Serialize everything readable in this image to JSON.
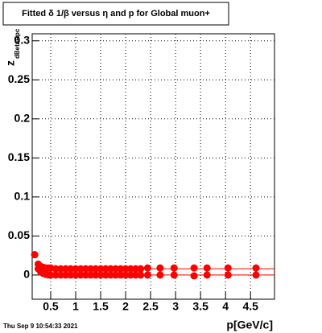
{
  "chart_data": {
    "type": "scatter",
    "title": "Fitted δ 1/β versus η and p for Global muon+",
    "xlabel": "p[GeV/c]",
    "ylabel": "z",
    "ylabel_sub": "dBetaRpc",
    "footer": "Thu Sep  9 10:54:33 2021",
    "x": [
      0.18,
      0.25,
      0.3,
      0.35,
      0.4,
      0.45,
      0.5,
      0.6,
      0.7,
      0.8,
      0.9,
      1.0,
      1.1,
      1.2,
      1.3,
      1.4,
      1.5,
      1.6,
      1.7,
      1.8,
      1.9,
      2.0,
      2.1,
      2.2,
      2.3,
      2.44,
      2.69,
      2.97,
      3.37,
      3.63,
      4.05,
      4.61
    ],
    "series": [
      {
        "color": "#ff0000",
        "values": [
          0.026,
          0.014,
          0.011,
          0.01,
          0.009,
          0.009,
          0.009,
          0.008,
          0.008,
          0.008,
          0.008,
          0.008,
          0.008,
          0.008,
          0.008,
          0.008,
          0.008,
          0.008,
          0.008,
          0.008,
          0.008,
          0.008,
          0.008,
          0.008,
          0.008,
          0.009,
          0.009,
          0.009,
          0.009,
          0.009,
          0.009,
          0.009
        ]
      },
      {
        "color": "#ff0000",
        "values": [
          0.026,
          0.008,
          0.004,
          0.002,
          0.001,
          0.0,
          0.0,
          0.0,
          0.0,
          0.0,
          0.0,
          0.0,
          0.0,
          0.0,
          0.0,
          0.0,
          0.0,
          0.0,
          0.0,
          0.0,
          0.0,
          0.0,
          0.0,
          0.0,
          0.0,
          0.0,
          0.0,
          0.0,
          -0.001,
          0.0,
          0.0,
          0.0
        ]
      }
    ],
    "hlines": [
      0.008,
      0.0
    ],
    "xlim": [
      0.13,
      4.98
    ],
    "ylim": [
      -0.031,
      0.309
    ],
    "xticks": [
      0.5,
      1,
      1.5,
      2,
      2.5,
      3,
      3.5,
      4,
      4.5
    ],
    "yticks": [
      0,
      0.05,
      0.1,
      0.15,
      0.2,
      0.25,
      0.3
    ],
    "grid": true
  }
}
